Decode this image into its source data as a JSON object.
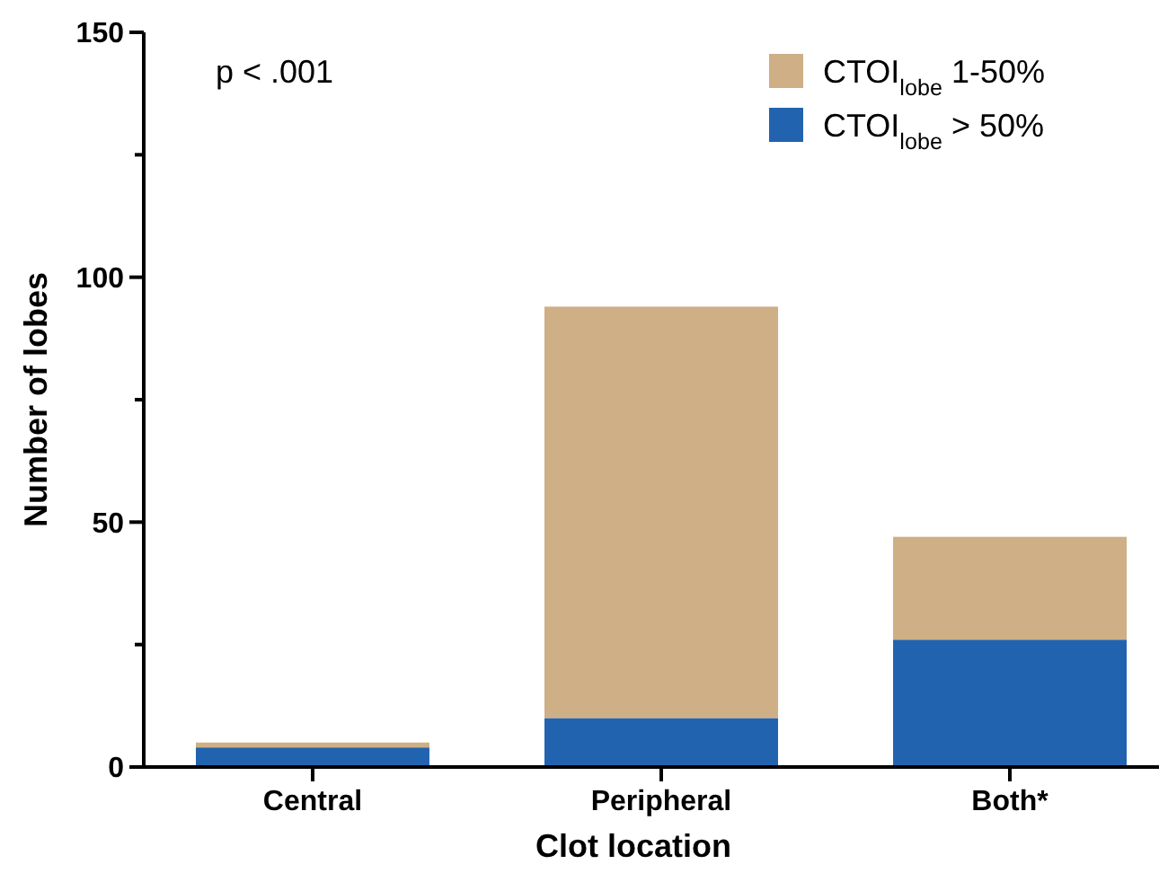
{
  "chart_data": {
    "type": "bar",
    "stacked": true,
    "categories": [
      "Central",
      "Peripheral",
      "Both*"
    ],
    "series": [
      {
        "name": "CTOI$_{lobe}$ > 50%",
        "color": "#2263b0",
        "values": [
          4,
          10,
          26
        ]
      },
      {
        "name": "CTOI$_{lobe}$ 1-50%",
        "color": "#ceaf86",
        "values": [
          1,
          84,
          21
        ]
      }
    ],
    "xlabel": "Clot location",
    "ylabel": "Number of lobes",
    "ylim": [
      0,
      150
    ],
    "yticks": [
      0,
      {
        "value": 25,
        "label": null
      },
      50,
      {
        "value": 75,
        "label": null
      },
      100,
      {
        "value": 125,
        "label": null
      },
      150
    ],
    "annotations": [
      "p < .001"
    ],
    "legend": "top right",
    "grid": false
  }
}
